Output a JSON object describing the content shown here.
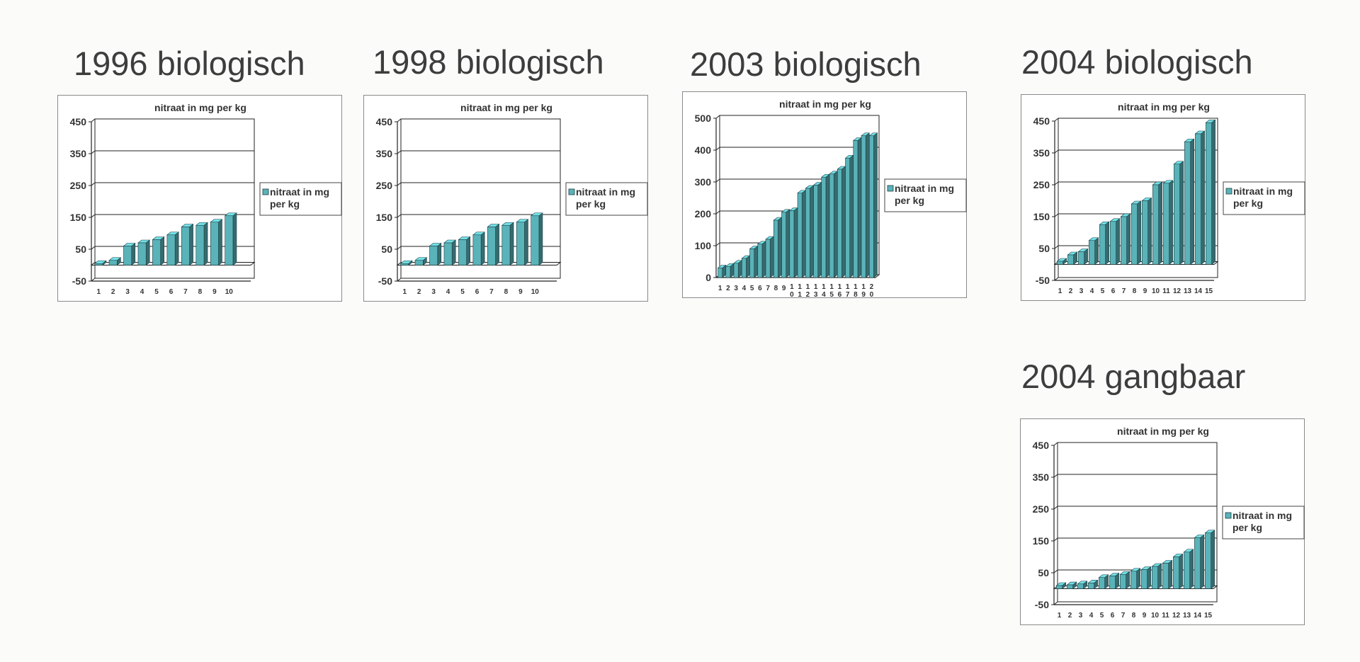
{
  "chart_data": [
    {
      "id": "c1996",
      "type": "bar",
      "title": "1996 biologisch",
      "chart_title": "nitraat in mg per kg",
      "legend": [
        "nitraat in mg",
        "per kg"
      ],
      "series_name": "nitraat in mg per kg",
      "legend_position": "right",
      "grid": true,
      "yticks": [
        -50,
        50,
        150,
        250,
        350,
        450
      ],
      "ylim": [
        -50,
        450
      ],
      "categories": [
        "1",
        "2",
        "3",
        "4",
        "5",
        "6",
        "7",
        "8",
        "9",
        "10"
      ],
      "values": [
        5,
        15,
        60,
        70,
        80,
        95,
        120,
        125,
        135,
        155
      ],
      "color": "#5ab3b9"
    },
    {
      "id": "c1998",
      "type": "bar",
      "title": "1998 biologisch",
      "chart_title": "nitraat in mg per kg",
      "legend": [
        "nitraat in mg",
        "per kg"
      ],
      "series_name": "nitraat in mg per kg",
      "legend_position": "right",
      "grid": true,
      "yticks": [
        -50,
        50,
        150,
        250,
        350,
        450
      ],
      "ylim": [
        -50,
        450
      ],
      "categories": [
        "1",
        "2",
        "3",
        "4",
        "5",
        "6",
        "7",
        "8",
        "9",
        "10"
      ],
      "values": [
        5,
        15,
        60,
        70,
        80,
        95,
        120,
        125,
        135,
        155
      ],
      "color": "#5ab3b9"
    },
    {
      "id": "c2003",
      "type": "bar",
      "title": "2003 biologisch",
      "chart_title": "nitraat in mg per kg",
      "legend": [
        "nitraat in mg",
        "per kg"
      ],
      "series_name": "nitraat in mg per kg",
      "legend_position": "right",
      "grid": true,
      "yticks": [
        0,
        100,
        200,
        300,
        400,
        500
      ],
      "ylim": [
        0,
        500
      ],
      "categories": [
        "1",
        "2",
        "3",
        "4",
        "5",
        "6",
        "7",
        "8",
        "9",
        "10",
        "11",
        "12",
        "13",
        "14",
        "15",
        "16",
        "17",
        "18",
        "19",
        "20"
      ],
      "values": [
        30,
        35,
        45,
        60,
        90,
        105,
        120,
        180,
        205,
        210,
        265,
        280,
        290,
        315,
        325,
        340,
        375,
        430,
        445,
        445
      ],
      "color": "#5ab3b9"
    },
    {
      "id": "c2004b",
      "type": "bar",
      "title": "2004 biologisch",
      "chart_title": "nitraat in mg per kg",
      "legend": [
        "nitraat in mg",
        "per kg"
      ],
      "series_name": "nitraat in mg per kg",
      "legend_position": "right",
      "grid": true,
      "yticks": [
        -50,
        50,
        150,
        250,
        350,
        450
      ],
      "ylim": [
        -50,
        450
      ],
      "categories": [
        "1",
        "2",
        "3",
        "4",
        "5",
        "6",
        "7",
        "8",
        "9",
        "10",
        "11",
        "12",
        "13",
        "14",
        "15"
      ],
      "values": [
        10,
        30,
        40,
        75,
        125,
        135,
        150,
        190,
        200,
        250,
        255,
        315,
        385,
        410,
        445
      ],
      "color": "#5ab3b9"
    },
    {
      "id": "c2004g",
      "type": "bar",
      "title": "2004 gangbaar",
      "chart_title": "nitraat in mg per kg",
      "legend": [
        "nitraat in mg",
        "per kg"
      ],
      "series_name": "nitraat in mg per kg",
      "legend_position": "right",
      "grid": true,
      "yticks": [
        -50,
        50,
        150,
        250,
        350,
        450
      ],
      "ylim": [
        -50,
        450
      ],
      "categories": [
        "1",
        "2",
        "3",
        "4",
        "5",
        "6",
        "7",
        "8",
        "9",
        "10",
        "11",
        "12",
        "13",
        "14",
        "15"
      ],
      "values": [
        10,
        12,
        15,
        18,
        35,
        40,
        45,
        55,
        60,
        70,
        80,
        100,
        115,
        160,
        175
      ],
      "color": "#5ab3b9"
    }
  ]
}
